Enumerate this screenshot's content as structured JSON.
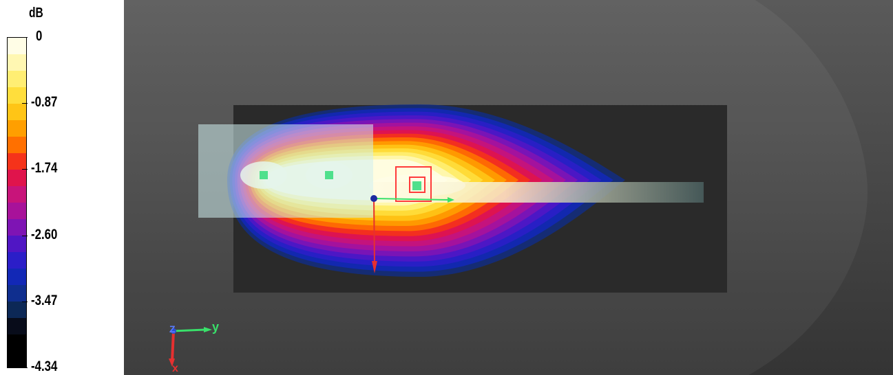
{
  "legend": {
    "unit": "dB",
    "ticks": [
      "0",
      "-0.87",
      "-1.74",
      "-2.60",
      "-3.47",
      "-4.34"
    ],
    "colors": [
      "#fffde6",
      "#fff7b2",
      "#ffee73",
      "#ffde3c",
      "#ffc516",
      "#ff9f00",
      "#ff7000",
      "#f5331a",
      "#e0144c",
      "#c8147a",
      "#a8129a",
      "#7e14b4",
      "#5016c4",
      "#2b1ec8",
      "#1228b6",
      "#0f2e8e",
      "#0c2856",
      "#080c1a",
      "#000000",
      "#000000"
    ]
  },
  "scene": {
    "background": "#3e3e3e",
    "axis_labels": {
      "z": "Z",
      "y": "y",
      "x": "x"
    }
  }
}
